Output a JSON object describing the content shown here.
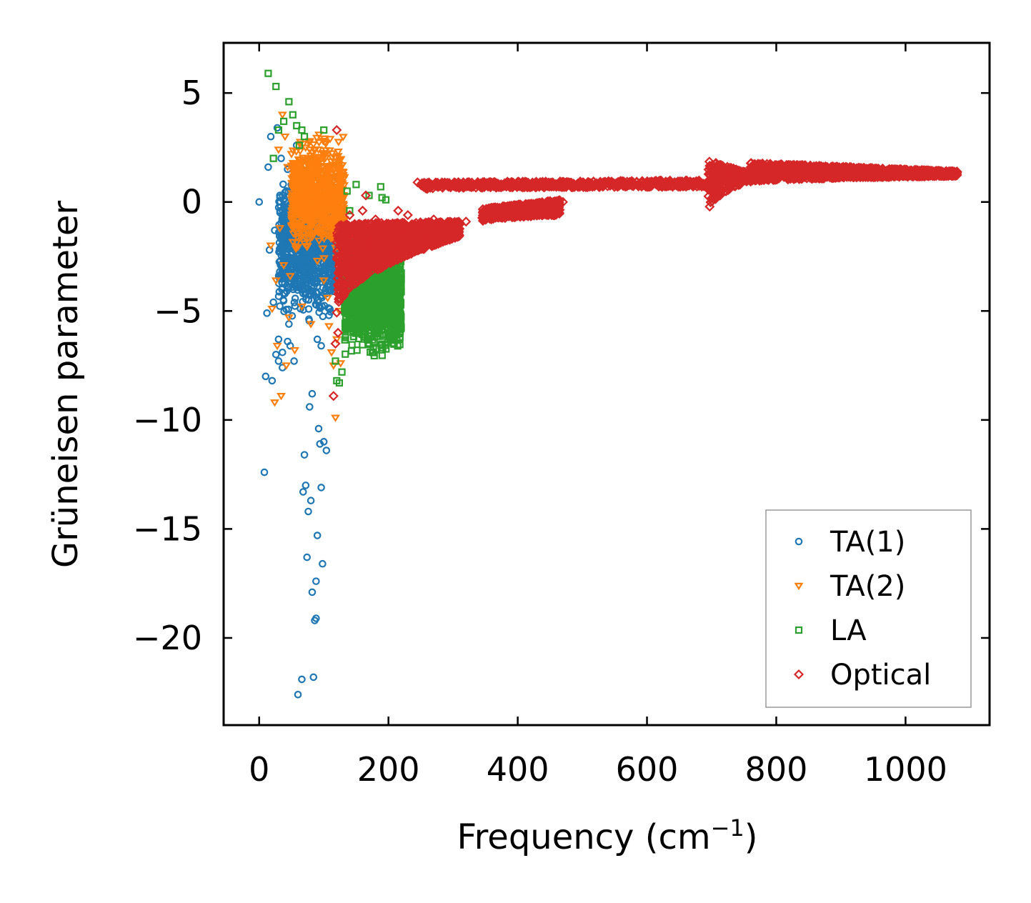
{
  "chart_data": {
    "type": "scatter",
    "title": "",
    "xlabel": "Frequency (cm",
    "xlabel_unit_exponent": "−1",
    "xlabel_close": ")",
    "ylabel": "Grüneisen parameter",
    "xlim": [
      -55,
      1130
    ],
    "ylim": [
      -24.0,
      7.3
    ],
    "x_ticks": [
      0,
      200,
      400,
      600,
      800,
      1000
    ],
    "x_tick_labels": [
      "0",
      "200",
      "400",
      "600",
      "800",
      "1000"
    ],
    "y_ticks": [
      5,
      0,
      -5,
      -10,
      -15,
      -20
    ],
    "y_tick_labels": [
      "5",
      "0",
      "−5",
      "−10",
      "−15",
      "−20"
    ],
    "grid": false,
    "legend_position": "bottom-right",
    "series": [
      {
        "name": "TA(1)",
        "marker": "circle",
        "color": "#1f77b4",
        "points": [
          [
            0,
            0
          ],
          [
            8,
            -12.4
          ],
          [
            10,
            -8.0
          ],
          [
            12,
            -5.1
          ],
          [
            14,
            1.6
          ],
          [
            16,
            -2.2
          ],
          [
            18,
            3.0
          ],
          [
            20,
            -8.2
          ],
          [
            22,
            -4.6
          ],
          [
            24,
            -1.3
          ],
          [
            26,
            -7.0
          ],
          [
            28,
            3.4
          ],
          [
            30,
            -6.3
          ],
          [
            32,
            0.3
          ],
          [
            34,
            2.0
          ],
          [
            36,
            -7.6
          ],
          [
            38,
            -1.8
          ],
          [
            40,
            -4.2
          ],
          [
            42,
            -3.3
          ],
          [
            44,
            1.5
          ],
          [
            46,
            -5.6
          ],
          [
            48,
            -6.6
          ],
          [
            50,
            -2.4
          ],
          [
            52,
            0.8
          ],
          [
            54,
            -7.3
          ],
          [
            56,
            -3.8
          ],
          [
            58,
            2.6
          ],
          [
            60,
            -22.6
          ],
          [
            62,
            -1.0
          ],
          [
            64,
            -4.9
          ],
          [
            66,
            -21.9
          ],
          [
            68,
            -13.3
          ],
          [
            70,
            -11.6
          ],
          [
            72,
            -13.0
          ],
          [
            74,
            -16.3
          ],
          [
            76,
            -14.2
          ],
          [
            78,
            -9.4
          ],
          [
            80,
            -13.7
          ],
          [
            82,
            -17.9
          ],
          [
            84,
            -21.8
          ],
          [
            86,
            -19.2
          ],
          [
            88,
            -17.4
          ],
          [
            90,
            -15.3
          ],
          [
            92,
            -10.4
          ],
          [
            94,
            -11.1
          ],
          [
            96,
            -13.1
          ],
          [
            98,
            -16.6
          ],
          [
            100,
            -11.0
          ],
          [
            104,
            -11.4
          ],
          [
            82,
            -8.8
          ],
          [
            88,
            -19.1
          ],
          [
            90,
            -6.3
          ],
          [
            96,
            -6.6
          ],
          [
            108,
            -5.2
          ],
          [
            110,
            -3.0
          ],
          [
            112,
            -1.6
          ],
          [
            115,
            -4.1
          ],
          [
            30,
            -7.3
          ],
          [
            36,
            -6.9
          ],
          [
            44,
            -6.4
          ]
        ],
        "cluster": {
          "x": [
            30,
            118
          ],
          "y": [
            -6.0,
            1.8
          ],
          "count": 900
        }
      },
      {
        "name": "TA(2)",
        "marker": "triangle-down",
        "color": "#ff7f0e",
        "points": [
          [
            18,
            -2.0
          ],
          [
            20,
            -4.9
          ],
          [
            24,
            -9.2
          ],
          [
            26,
            -3.6
          ],
          [
            28,
            -6.6
          ],
          [
            30,
            2.4
          ],
          [
            32,
            -1.2
          ],
          [
            34,
            -8.9
          ],
          [
            36,
            4.0
          ],
          [
            38,
            -2.9
          ],
          [
            40,
            3.0
          ],
          [
            42,
            -7.5
          ],
          [
            44,
            1.6
          ],
          [
            46,
            -5.3
          ],
          [
            48,
            -3.4
          ],
          [
            50,
            2.2
          ],
          [
            55,
            -6.8
          ],
          [
            60,
            -0.5
          ],
          [
            66,
            -4.8
          ],
          [
            70,
            -1.9
          ],
          [
            80,
            -5.6
          ],
          [
            90,
            -2.7
          ],
          [
            100,
            -3.6
          ],
          [
            106,
            -4.4
          ],
          [
            108,
            -5.7
          ],
          [
            112,
            -6.9
          ],
          [
            115,
            -7.5
          ],
          [
            118,
            -9.9
          ],
          [
            120,
            -6.3
          ],
          [
            124,
            -5.0
          ],
          [
            126,
            -7.4
          ],
          [
            128,
            -3.2
          ]
        ],
        "cluster": {
          "x": [
            50,
            132
          ],
          "y": [
            -3.0,
            3.6
          ],
          "count": 800
        }
      },
      {
        "name": "LA",
        "marker": "square",
        "color": "#2ca02c",
        "points": [
          [
            14,
            5.9
          ],
          [
            22,
            2.0
          ],
          [
            26,
            5.3
          ],
          [
            30,
            3.3
          ],
          [
            38,
            3.7
          ],
          [
            46,
            4.6
          ],
          [
            52,
            4.0
          ],
          [
            58,
            3.5
          ],
          [
            62,
            2.6
          ],
          [
            66,
            3.3
          ],
          [
            70,
            3.0
          ],
          [
            100,
            3.3
          ],
          [
            118,
            -7.3
          ],
          [
            120,
            -8.2
          ],
          [
            124,
            -8.3
          ],
          [
            128,
            -7.8
          ],
          [
            132,
            -5.0
          ],
          [
            136,
            0.5
          ],
          [
            140,
            -0.4
          ],
          [
            150,
            0.8
          ],
          [
            160,
            -3.5
          ],
          [
            170,
            0.3
          ],
          [
            190,
            0.2
          ],
          [
            188,
            0.7
          ],
          [
            196,
            0.1
          ]
        ],
        "cluster": {
          "x": [
            132,
            220
          ],
          "y": [
            -7.5,
            -1.0
          ],
          "count": 1400
        }
      },
      {
        "name": "Optical",
        "marker": "diamond",
        "color": "#d62728",
        "points": [
          [
            115,
            -8.9
          ],
          [
            118,
            -6.5
          ],
          [
            122,
            -6.0
          ],
          [
            126,
            -3.3
          ],
          [
            132,
            -2.2
          ],
          [
            140,
            -0.6
          ],
          [
            150,
            -1.1
          ],
          [
            160,
            -0.4
          ],
          [
            165,
            0.3
          ],
          [
            170,
            -1.2
          ],
          [
            180,
            -0.8
          ],
          [
            195,
            -1.3
          ],
          [
            205,
            -1.5
          ],
          [
            215,
            -0.4
          ],
          [
            230,
            -0.6
          ],
          [
            245,
            0.9
          ],
          [
            260,
            0.6
          ],
          [
            270,
            -0.8
          ],
          [
            300,
            -1.1
          ],
          [
            320,
            -0.9
          ],
          [
            350,
            -0.6
          ],
          [
            380,
            -0.4
          ],
          [
            400,
            -0.3
          ],
          [
            420,
            -0.2
          ],
          [
            440,
            -0.1
          ],
          [
            455,
            -0.0
          ],
          [
            470,
            0.0
          ],
          [
            120,
            3.3
          ]
        ],
        "branches": [
          {
            "x": [
              120,
              310
            ],
            "y_top": [
              -1.0,
              -0.9
            ],
            "y_bottom": [
              -5.2,
              -1.6
            ],
            "count": 1500
          },
          {
            "x": [
              345,
              465
            ],
            "y_top": [
              -0.3,
              0.1
            ],
            "y_bottom": [
              -0.9,
              -0.6
            ],
            "count": 600
          },
          {
            "x": [
              250,
              700
            ],
            "y_top": [
              0.9,
              1.0
            ],
            "y_bottom": [
              0.6,
              0.7
            ],
            "count": 700
          },
          {
            "x": [
              695,
              760
            ],
            "y_top": [
              1.9,
              1.3
            ],
            "y_bottom": [
              -0.5,
              1.0
            ],
            "count": 300
          },
          {
            "x": [
              760,
              1080
            ],
            "y_top": [
              1.8,
              1.4
            ],
            "y_bottom": [
              0.9,
              1.2
            ],
            "count": 1600
          }
        ]
      }
    ]
  }
}
